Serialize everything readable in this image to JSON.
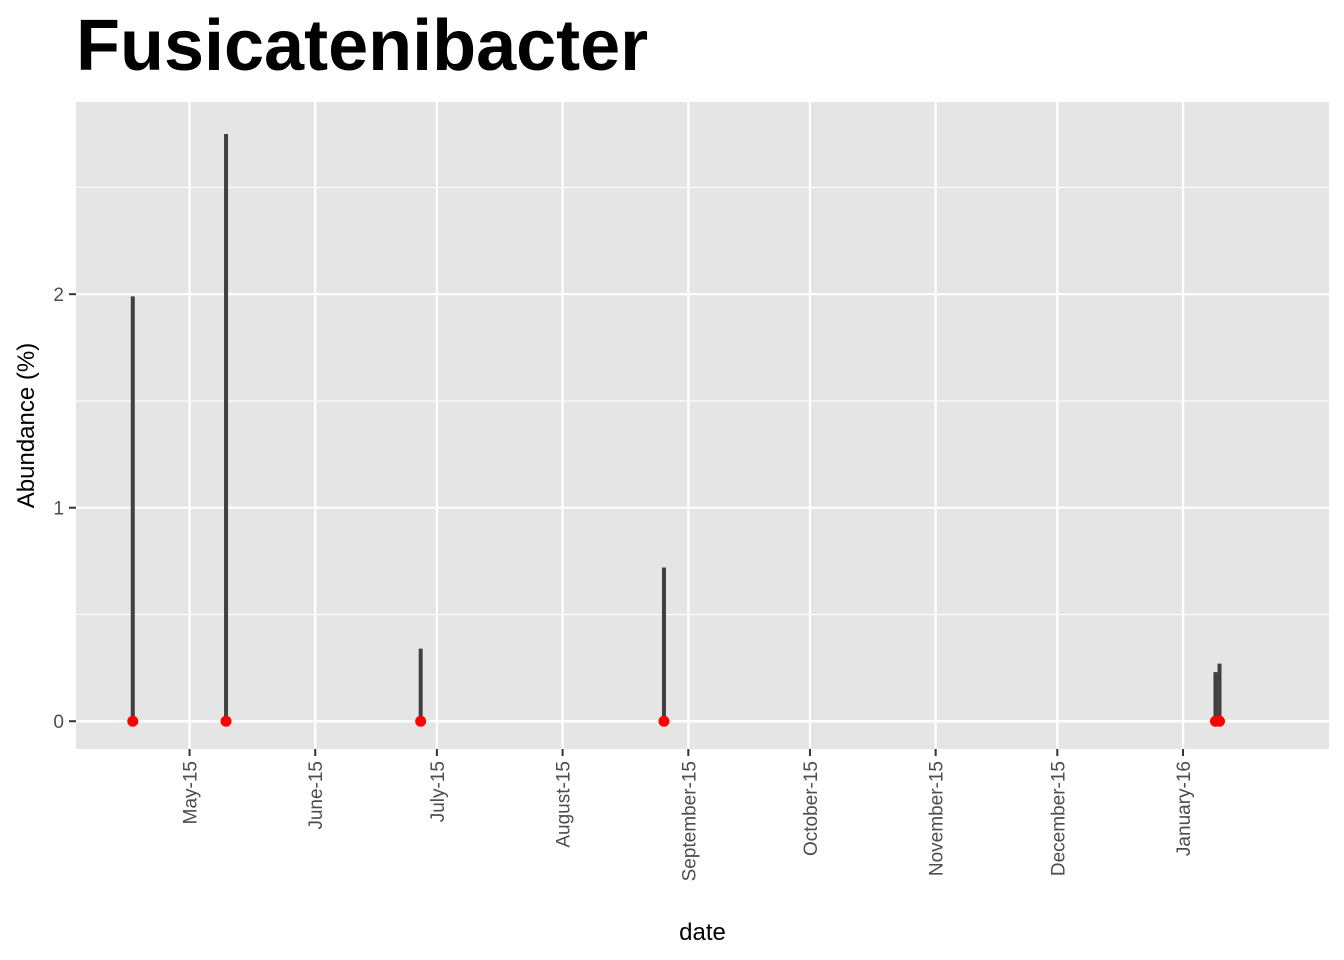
{
  "chart_data": {
    "type": "lollipop",
    "title": "Fusicatenibacter",
    "xlabel": "date",
    "ylabel": "Abundance (%)",
    "x_axis": {
      "type": "date",
      "range": [
        "2015-04-03",
        "2016-02-06"
      ],
      "ticks": [
        {
          "date": "2015-05-01",
          "label": "May-15"
        },
        {
          "date": "2015-06-01",
          "label": "June-15"
        },
        {
          "date": "2015-07-01",
          "label": "July-15"
        },
        {
          "date": "2015-08-01",
          "label": "August-15"
        },
        {
          "date": "2015-09-01",
          "label": "September-15"
        },
        {
          "date": "2015-10-01",
          "label": "October-15"
        },
        {
          "date": "2015-11-01",
          "label": "November-15"
        },
        {
          "date": "2015-12-01",
          "label": "December-15"
        },
        {
          "date": "2016-01-01",
          "label": "January-16"
        }
      ]
    },
    "y_axis": {
      "range": [
        -0.13,
        2.9
      ],
      "ticks": [
        0,
        1,
        2
      ],
      "tick_labels": [
        "0",
        "1",
        "2"
      ],
      "minor_ticks": [
        0.5,
        1.5,
        2.5
      ]
    },
    "grid": true,
    "series": [
      {
        "points": [
          {
            "date": "2015-04-17",
            "value": 1.99
          },
          {
            "date": "2015-05-10",
            "value": 2.75
          },
          {
            "date": "2015-06-27",
            "value": 0.34
          },
          {
            "date": "2015-08-26",
            "value": 0.72
          },
          {
            "date": "2016-01-09",
            "value": 0.23
          },
          {
            "date": "2016-01-10",
            "value": 0.27
          }
        ]
      }
    ],
    "colors": {
      "panel_background": "#e5e5e5",
      "grid": "#ffffff",
      "stem": "#404040",
      "point": "#ff0000",
      "tick_label": "#4d4d4d",
      "tick_mark": "#333333"
    }
  }
}
